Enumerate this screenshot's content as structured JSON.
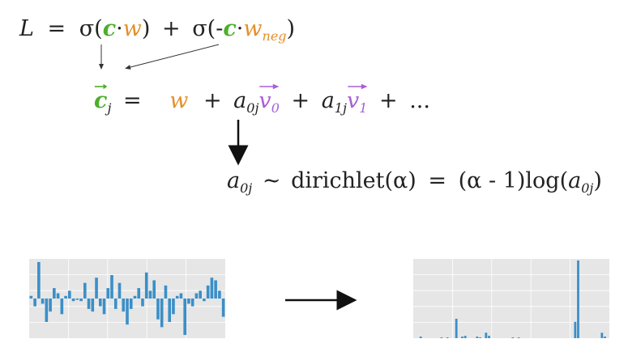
{
  "equation1": {
    "lhs": "L",
    "eq": "=",
    "sigma": "σ(",
    "c": "c",
    "dot": "·",
    "w": "w",
    "close": ")",
    "plus": "+",
    "sigma_neg": "σ(-",
    "w_neg": "w",
    "w_neg_sub": "neg",
    "close2": ")"
  },
  "equation2": {
    "c": "c",
    "c_sub": "j",
    "eq": "=",
    "w": "w",
    "plus1": "+",
    "a0": "a",
    "a0_sub": "0j",
    "v0": "v",
    "v0_sub": "0",
    "plus2": "+",
    "a1": "a",
    "a1_sub": "1j",
    "v1": "v",
    "v1_sub": "1",
    "plus3": "+",
    "dots": "..."
  },
  "equation3": {
    "a": "a",
    "a_sub": "0j",
    "tilde": "~",
    "dist": "dirichlet(α)",
    "eq": "=",
    "rhs_pre": "(α - 1)log(",
    "a2": "a",
    "a2_sub": "0j",
    "rhs_post": ")"
  },
  "colors": {
    "green": "#4caf2a",
    "orange": "#e4902a",
    "purple": "#a85fd8",
    "bar": "#3a8fc8",
    "panel": "#e6e6e6"
  },
  "chart_data": [
    {
      "type": "bar",
      "values": [
        0.1,
        -0.3,
        1.4,
        -0.2,
        -0.9,
        -0.5,
        0.4,
        0.2,
        -0.6,
        0.1,
        0.3,
        -0.1,
        -0.05,
        -0.1,
        0.6,
        -0.4,
        -0.5,
        0.8,
        -0.3,
        -0.6,
        0.4,
        0.9,
        -0.4,
        0.6,
        -0.5,
        -1.0,
        -0.4,
        0.1,
        0.4,
        -0.3,
        1.0,
        0.3,
        0.7,
        -0.8,
        -1.1,
        0.5,
        -0.9,
        -0.6,
        0.1,
        0.2,
        -1.4,
        -0.2,
        -0.3,
        0.2,
        0.3,
        -0.1,
        0.5,
        0.8,
        0.7,
        0.3,
        -0.7
      ]
    },
    {
      "type": "bar",
      "values": [
        0,
        0,
        0.02,
        0,
        0,
        0,
        0,
        0,
        0,
        0.01,
        0,
        0.01,
        0,
        0,
        0.25,
        0,
        0.02,
        0.03,
        0,
        0,
        0,
        0.02,
        0.01,
        0,
        0.07,
        0.03,
        0,
        0,
        0,
        0,
        0,
        0,
        0,
        0.01,
        0,
        0.01,
        0,
        0,
        0,
        0,
        0,
        0,
        0,
        0,
        0,
        0,
        0,
        0,
        0,
        0,
        0,
        0,
        0,
        0,
        0.21,
        1.0,
        0,
        0,
        0,
        0,
        0,
        0,
        0,
        0.07,
        0.02,
        0
      ]
    }
  ]
}
